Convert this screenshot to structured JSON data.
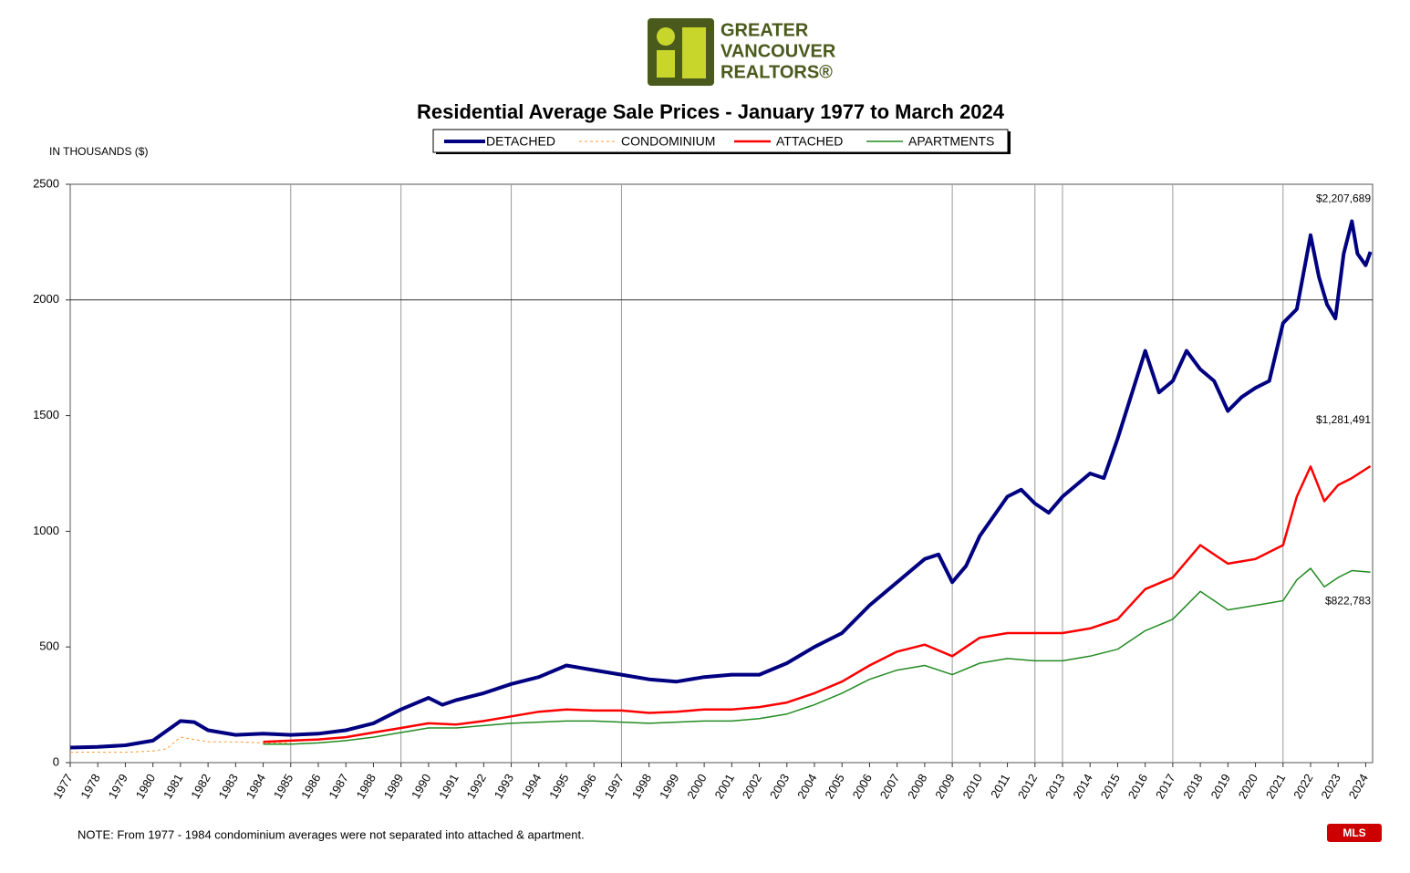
{
  "logo": [
    "GREATER",
    "VANCOUVER",
    "REALTORS®"
  ],
  "note": "NOTE:  From 1977 - 1984 condominium averages were not separated into attached & apartment.",
  "chart_data": {
    "type": "line",
    "title": "Residential Average Sale Prices  -  January 1977 to March 2024",
    "y_label": "IN THOUSANDS ($)",
    "xlim": [
      1977,
      2024.25
    ],
    "xticks": [
      1977,
      1978,
      1979,
      1980,
      1981,
      1982,
      1983,
      1984,
      1985,
      1986,
      1987,
      1988,
      1989,
      1990,
      1991,
      1992,
      1993,
      1994,
      1995,
      1996,
      1997,
      1998,
      1999,
      2000,
      2001,
      2002,
      2003,
      2004,
      2005,
      2006,
      2007,
      2008,
      2009,
      2010,
      2011,
      2012,
      2013,
      2014,
      2015,
      2016,
      2017,
      2018,
      2019,
      2020,
      2021,
      2022,
      2023,
      2024
    ],
    "ylim": [
      0,
      2500
    ],
    "yticks": [
      0,
      500,
      1000,
      1500,
      2000,
      2500
    ],
    "y_grid_lines": [
      2000
    ],
    "x_grid_lines": [
      1985,
      1989,
      1993,
      1997,
      2009,
      2012,
      2013,
      2017,
      2021
    ],
    "series": [
      {
        "name": "DETACHED",
        "color": "#000080",
        "width": 4,
        "dash": "none",
        "x": [
          1977,
          1978,
          1979,
          1980,
          1981,
          1981.5,
          1982,
          1983,
          1984,
          1985,
          1986,
          1987,
          1988,
          1989,
          1990,
          1990.5,
          1991,
          1992,
          1993,
          1994,
          1995,
          1996,
          1997,
          1998,
          1999,
          2000,
          2001,
          2002,
          2003,
          2004,
          2005,
          2006,
          2007,
          2008,
          2008.5,
          2009,
          2009.5,
          2010,
          2011,
          2011.5,
          2012,
          2012.5,
          2013,
          2014,
          2014.5,
          2015,
          2016,
          2016.5,
          2017,
          2017.5,
          2018,
          2018.5,
          2019,
          2019.5,
          2020,
          2020.5,
          2021,
          2021.5,
          2022,
          2022.3,
          2022.6,
          2022.9,
          2023.2,
          2023.5,
          2023.7,
          2024,
          2024.17
        ],
        "values": [
          65,
          68,
          75,
          95,
          180,
          175,
          140,
          120,
          125,
          120,
          125,
          140,
          170,
          230,
          280,
          250,
          270,
          300,
          340,
          370,
          420,
          400,
          380,
          360,
          350,
          370,
          380,
          380,
          430,
          500,
          560,
          680,
          780,
          880,
          900,
          780,
          850,
          980,
          1150,
          1180,
          1120,
          1080,
          1150,
          1250,
          1230,
          1400,
          1780,
          1600,
          1650,
          1780,
          1700,
          1650,
          1520,
          1580,
          1620,
          1650,
          1900,
          1960,
          2280,
          2100,
          1980,
          1920,
          2200,
          2340,
          2200,
          2150,
          2207.689
        ],
        "end_label": "$2,207,689"
      },
      {
        "name": "CONDOMINIUM",
        "color": "#ff9933",
        "width": 1,
        "dash": "3 3",
        "x": [
          1977,
          1978,
          1979,
          1980,
          1980.5,
          1981,
          1982,
          1983,
          1984,
          1985
        ],
        "values": [
          45,
          45,
          45,
          50,
          60,
          110,
          90,
          90,
          85,
          85
        ]
      },
      {
        "name": "ATTACHED",
        "color": "#ff0000",
        "width": 2.5,
        "dash": "none",
        "x": [
          1984,
          1985,
          1986,
          1987,
          1988,
          1989,
          1990,
          1991,
          1992,
          1993,
          1994,
          1995,
          1996,
          1997,
          1998,
          1999,
          2000,
          2001,
          2002,
          2003,
          2004,
          2005,
          2006,
          2007,
          2008,
          2009,
          2010,
          2011,
          2012,
          2013,
          2014,
          2015,
          2016,
          2017,
          2018,
          2019,
          2020,
          2021,
          2021.5,
          2022,
          2022.5,
          2023,
          2023.5,
          2024.17
        ],
        "values": [
          90,
          95,
          100,
          110,
          130,
          150,
          170,
          165,
          180,
          200,
          220,
          230,
          225,
          225,
          215,
          220,
          230,
          230,
          240,
          260,
          300,
          350,
          420,
          480,
          510,
          460,
          540,
          560,
          560,
          560,
          580,
          620,
          750,
          800,
          940,
          860,
          880,
          940,
          1150,
          1280,
          1130,
          1200,
          1230,
          1281.491
        ],
        "end_label": "$1,281,491"
      },
      {
        "name": "APARTMENTS",
        "color": "#228b22",
        "width": 1.5,
        "dash": "none",
        "x": [
          1984,
          1985,
          1986,
          1987,
          1988,
          1989,
          1990,
          1991,
          1992,
          1993,
          1994,
          1995,
          1996,
          1997,
          1998,
          1999,
          2000,
          2001,
          2002,
          2003,
          2004,
          2005,
          2006,
          2007,
          2008,
          2009,
          2010,
          2011,
          2012,
          2013,
          2014,
          2015,
          2016,
          2017,
          2018,
          2019,
          2020,
          2021,
          2021.5,
          2022,
          2022.5,
          2023,
          2023.5,
          2024.17
        ],
        "values": [
          80,
          80,
          85,
          95,
          110,
          130,
          150,
          150,
          160,
          170,
          175,
          180,
          180,
          175,
          170,
          175,
          180,
          180,
          190,
          210,
          250,
          300,
          360,
          400,
          420,
          380,
          430,
          450,
          440,
          440,
          460,
          490,
          570,
          620,
          740,
          660,
          680,
          700,
          790,
          840,
          760,
          800,
          830,
          822.783
        ],
        "end_label": "$822,783"
      }
    ]
  }
}
